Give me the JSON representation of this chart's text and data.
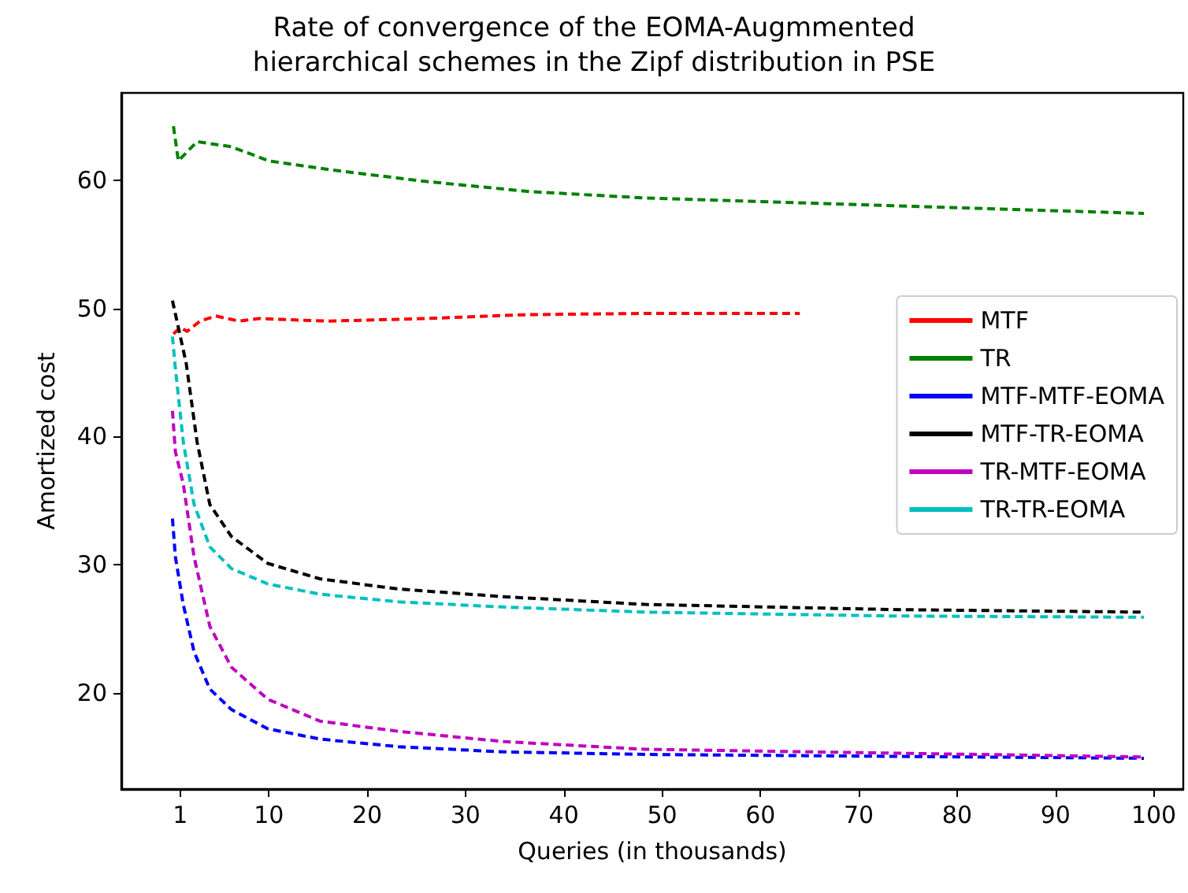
{
  "chart_data": {
    "type": "line",
    "title": "Rate of convergence of the EOMA-Augmmented\nhierarchical schemes in the Zipf distribution in PSE",
    "xlabel": "Queries (in thousands)",
    "ylabel": "Amortized cost",
    "xlim": [
      -5,
      103
    ],
    "xticks": [
      1,
      10,
      20,
      30,
      40,
      50,
      60,
      70,
      80,
      90,
      100
    ],
    "ylim": [
      12.5,
      66.8
    ],
    "yticks": [
      20,
      30,
      40,
      50,
      60
    ],
    "grid": false,
    "legend": "right",
    "marker": "none",
    "line_style": "dashed",
    "series": [
      {
        "name": "MTF",
        "color": "#ff0000",
        "x": [
          0.3,
          1,
          1.7,
          3,
          4.6,
          7,
          9,
          16,
          26,
          36,
          48,
          64
        ],
        "values": [
          48.0,
          48.5,
          48.2,
          49.0,
          49.4,
          49.0,
          49.2,
          49.0,
          49.2,
          49.5,
          49.6,
          49.6
        ]
      },
      {
        "name": "TR",
        "color": "#008000",
        "x": [
          0.3,
          0.8,
          2.7,
          6.2,
          10,
          16.3,
          25.9,
          36.6,
          48.4,
          73.5,
          99
        ],
        "values": [
          64.2,
          61.5,
          63.0,
          62.6,
          61.5,
          60.8,
          59.9,
          59.1,
          58.6,
          58.0,
          57.4
        ]
      },
      {
        "name": "MTF-MTF-EOMA",
        "color": "#0000ff",
        "x": [
          0.2,
          0.5,
          1.3,
          2.4,
          4,
          6.2,
          9.9,
          15.2,
          23.2,
          33.9,
          48.3,
          99
        ],
        "values": [
          33.6,
          30.6,
          26.9,
          23.2,
          20.3,
          18.7,
          17.2,
          16.4,
          15.8,
          15.4,
          15.2,
          14.9
        ]
      },
      {
        "name": "MTF-TR-EOMA",
        "color": "#000000",
        "x": [
          0.2,
          1.6,
          2.7,
          4,
          6.2,
          9.9,
          15.2,
          23.2,
          33.9,
          48.3,
          73.5,
          99
        ],
        "values": [
          50.6,
          45.7,
          39.6,
          34.7,
          32.2,
          30.1,
          28.9,
          28.1,
          27.5,
          26.9,
          26.5,
          26.3
        ]
      },
      {
        "name": "TR-MTF-EOMA",
        "color": "#bf00bf",
        "x": [
          0.2,
          0.5,
          1.3,
          2.4,
          4,
          6.2,
          9.9,
          15.2,
          23.2,
          33.9,
          48.3,
          99
        ],
        "values": [
          42.0,
          38.8,
          36.3,
          30.6,
          25.2,
          22.0,
          19.5,
          17.8,
          17.0,
          16.2,
          15.6,
          15.0
        ]
      },
      {
        "name": "TR-TR-EOMA",
        "color": "#00bfbf",
        "x": [
          0.2,
          0.5,
          1.3,
          2.4,
          4,
          6.2,
          9.9,
          15.2,
          23.2,
          33.9,
          48.3,
          73.5,
          99
        ],
        "values": [
          47.8,
          45.3,
          39.6,
          34.7,
          31.4,
          29.7,
          28.5,
          27.7,
          27.1,
          26.7,
          26.3,
          26.0,
          25.9
        ]
      }
    ]
  }
}
